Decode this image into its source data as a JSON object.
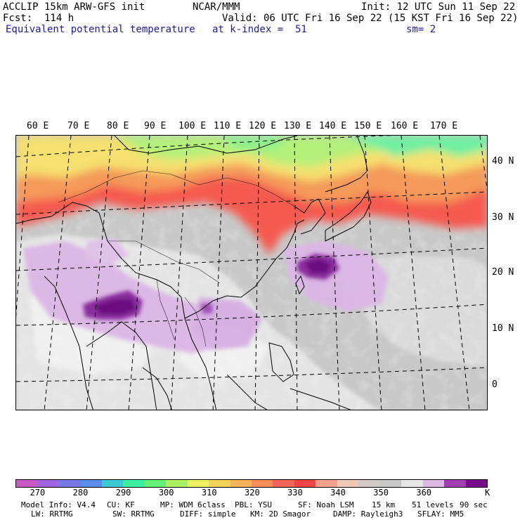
{
  "header": {
    "line1_left": "ACCLIP 15km ARW-GFS init",
    "line1_center": "NCAR/MMM",
    "line1_right": "Init: 12 UTC Sun 11 Sep 22",
    "line2_left": "Fcst:  114 h",
    "line2_right": "Valid: 06 UTC Fri 16 Sep 22 (15 KST Fri 16 Sep 22)",
    "line3_left": "Equivalent potential temperature",
    "line3_center": "at k-index =  51",
    "line3_right": "sm= 2"
  },
  "map": {
    "lon_labels": [
      "60 E",
      "70 E",
      "80 E",
      "90 E",
      "100 E",
      "110 E",
      "120 E",
      "130 E",
      "140 E",
      "150 E",
      "160 E",
      "170 E"
    ],
    "lat_labels": [
      "40 N",
      "30 N",
      "20 N",
      "10 N",
      "0"
    ],
    "colors": {
      "grey_bg": "#c6c6c6",
      "light_grey": "#e6e6e6",
      "lavender": "#dcb8e6",
      "purple": "#8a2d9e",
      "dark_purple": "#6a0f80",
      "red": "#f0504a",
      "orange": "#f5a050",
      "yellow": "#f0f07a",
      "green": "#8cf08c",
      "teal": "#50e6b4"
    }
  },
  "colorbar": {
    "colors": [
      "#c85ac8",
      "#a064dc",
      "#7878e6",
      "#5a8cf0",
      "#3cc8d2",
      "#3cf0a0",
      "#64f078",
      "#aaf064",
      "#f0f064",
      "#f5d25a",
      "#f5b45a",
      "#f58c5a",
      "#f5645a",
      "#f54646",
      "#f5a08c",
      "#f0c8b4",
      "#d2c8c8",
      "#c8c8c8",
      "#e6e6e6",
      "#dcb8e6",
      "#a040b0",
      "#780a8c"
    ],
    "labels": [
      "270",
      "280",
      "290",
      "300",
      "310",
      "320",
      "330",
      "340",
      "350",
      "360"
    ],
    "unit": "K"
  },
  "footer": {
    "line1": [
      "Model Info: V4.4",
      "CU: KF",
      "MP: WDM 6class",
      "PBL: YSU",
      "SF: Noah LSM",
      "15 km",
      "51 levels",
      "90 sec"
    ],
    "line2": [
      "LW: RRTMG",
      "SW: RRTMG",
      "DIFF: simple",
      "KM: 2D Smagor",
      "DAMP: Rayleigh3",
      "SFLAY: MM5"
    ]
  }
}
